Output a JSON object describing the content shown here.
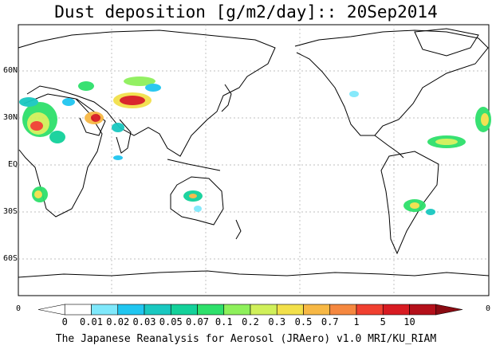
{
  "title": "Dust deposition [g/m2/day]:: 20Sep2014",
  "lat_labels": [
    "60N",
    "30N",
    "EQ",
    "30S",
    "60S"
  ],
  "corner_labels": {
    "left": "0",
    "right": "0"
  },
  "colorbar": {
    "labels": [
      "0",
      "0.01",
      "0.02",
      "0.03",
      "0.05",
      "0.07",
      "0.1",
      "0.2",
      "0.3",
      "0.5",
      "0.7",
      "1",
      "5",
      "10"
    ],
    "colors": [
      "#ffffff",
      "#ffffff",
      "#7fe8fb",
      "#20c6f0",
      "#19c8c0",
      "#13d19a",
      "#2ee06b",
      "#8ef05b",
      "#d0f05a",
      "#f2e04a",
      "#f7b845",
      "#f58840",
      "#f04030",
      "#d81b22",
      "#b4101a",
      "#8a0b12"
    ]
  },
  "footer": "The Japanese Reanalysis for Aerosol (JRAero) v1.0 MRI/KU_RIAM"
}
